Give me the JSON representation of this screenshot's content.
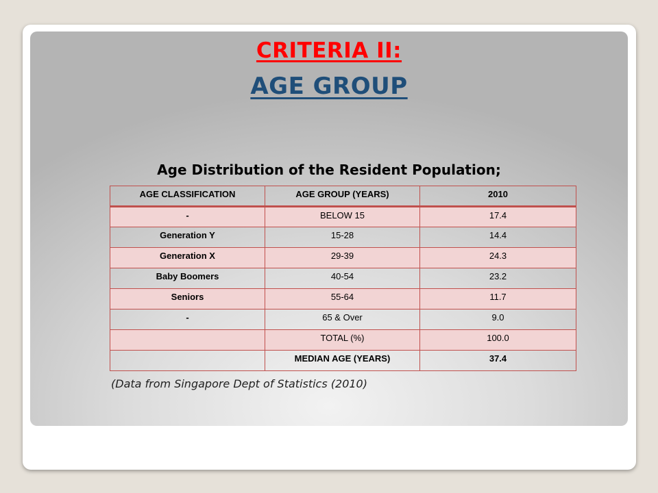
{
  "title_line1": "CRITERIA II:",
  "title_line2": "AGE GROUP",
  "table_title": "Age Distribution of the Resident Population;",
  "table": {
    "headers": [
      "AGE CLASSIFICATION",
      "AGE GROUP (YEARS)",
      "2010"
    ],
    "rows": [
      [
        "-",
        "BELOW 15",
        "17.4"
      ],
      [
        "Generation Y",
        "15-28",
        "14.4"
      ],
      [
        "Generation X",
        "29-39",
        "24.3"
      ],
      [
        "Baby Boomers",
        "40-54",
        "23.2"
      ],
      [
        "Seniors",
        "55-64",
        "11.7"
      ],
      [
        "-",
        "65 & Over",
        "9.0"
      ],
      [
        "",
        "TOTAL (%)",
        "100.0"
      ],
      [
        "",
        "MEDIAN AGE (YEARS)",
        "37.4"
      ]
    ]
  },
  "source_note": "(Data from Singapore Dept of Statistics (2010)",
  "colors": {
    "title_red": "#ff0000",
    "title_blue": "#1f4e79",
    "table_border": "#c0504d",
    "row_pink": "#f2d4d4"
  }
}
